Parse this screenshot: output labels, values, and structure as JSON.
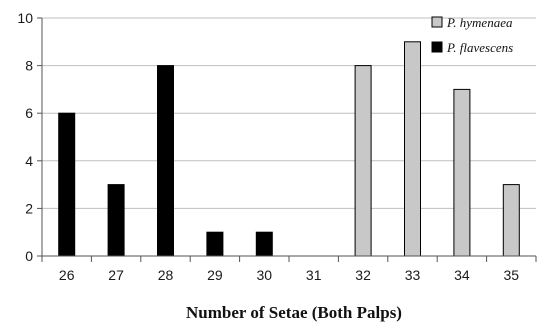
{
  "chart_data": {
    "type": "bar",
    "categories": [
      "26",
      "27",
      "28",
      "29",
      "30",
      "31",
      "32",
      "33",
      "34",
      "35"
    ],
    "series": [
      {
        "name": "P. hymenaea",
        "color": "#c8c8c8",
        "values": [
          0,
          0,
          0,
          0,
          0,
          0,
          8,
          9,
          7,
          3
        ]
      },
      {
        "name": "P. flavescens",
        "color": "#000000",
        "values": [
          6,
          3,
          8,
          1,
          1,
          0,
          0,
          0,
          0,
          0
        ]
      }
    ],
    "title": "",
    "xlabel": "Number of Setae (Both Palps)",
    "ylabel": "",
    "ylim": [
      0,
      10
    ],
    "yticks": [
      0,
      2,
      4,
      6,
      8,
      10
    ],
    "grid": true,
    "legend_position": "top-right"
  }
}
